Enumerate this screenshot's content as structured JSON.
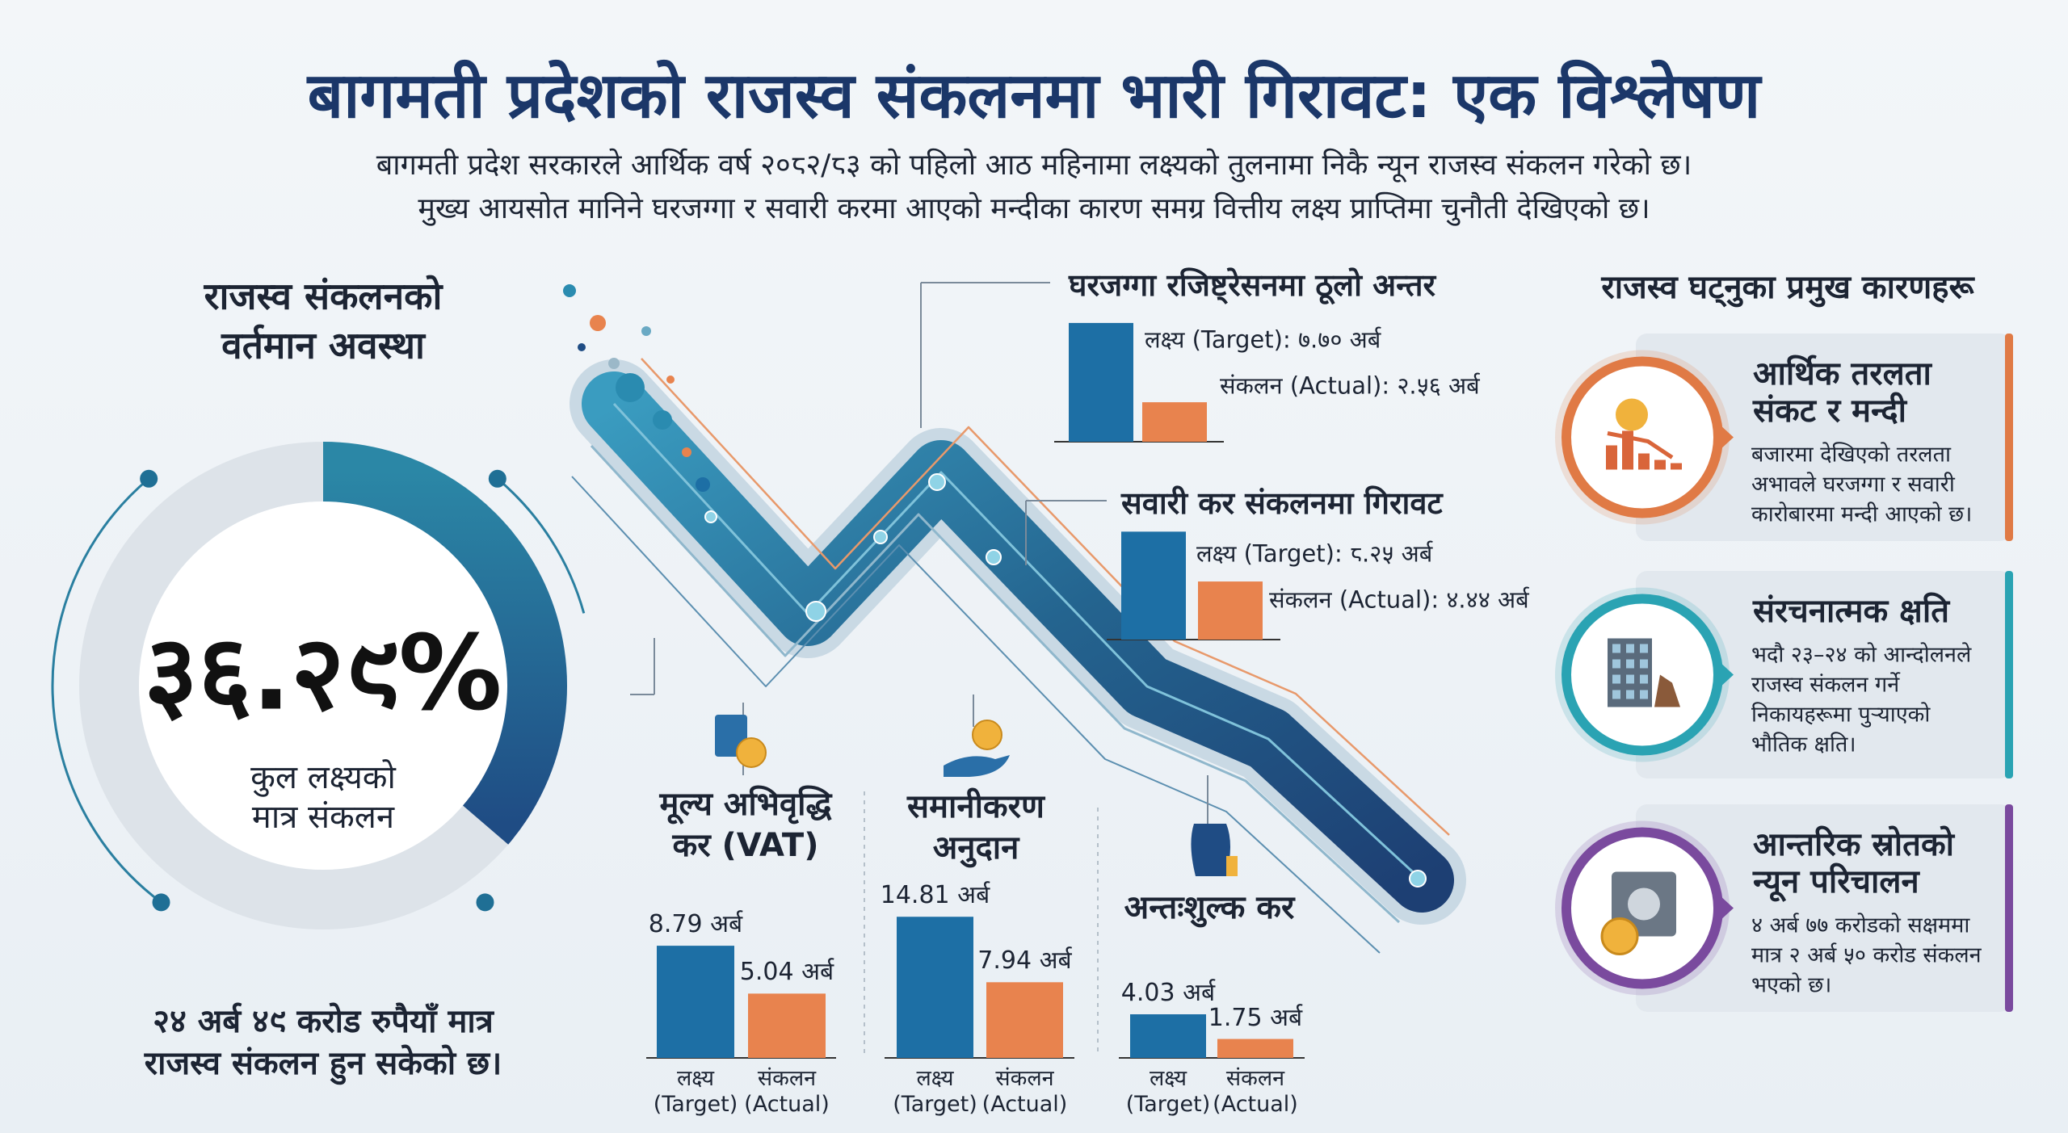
{
  "title": "बागमती प्रदेशको राजस्व संकलनमा भारी गिरावट: एक विश्लेषण",
  "subtitle": [
    "बागमती प्रदेश सरकारले आर्थिक वर्ष २०८२/८३ को पहिलो आठ महिनामा लक्ष्यको तुलनामा निकै न्यून राजस्व संकलन गरेको छ।",
    "मुख्य आयसोत मानिने घरजग्गा र सवारी करमा आएको मन्दीका कारण समग्र वित्तीय लक्ष्य प्राप्तिमा चुनौती देखिएको छ।"
  ],
  "status": {
    "heading": [
      "राजस्व संकलनको",
      "वर्तमान अवस्था"
    ],
    "note": [
      "२४ अर्ब ४९ करोड रुपैयाँ मात्र",
      "राजस्व संकलन हुन सकेको छ।"
    ]
  },
  "chart_data": [
    {
      "type": "donut",
      "values": [
        36.29
      ],
      "value_labels": [
        "३६.२९%"
      ],
      "caption": [
        "कुल लक्ष्यको",
        "मात्र संकलन"
      ],
      "color": "#1f4c84"
    },
    {
      "type": "bar",
      "title": [
        "घरजग्गा रजिष्ट्रेसनमा ठूलो अन्तर"
      ],
      "values": [
        7.7,
        2.56
      ],
      "value_labels": [
        "लक्ष्य (Target): ७.७० अर्ब",
        "संकलन (Actual): २.५६ अर्ब"
      ],
      "colors": [
        "#1d6fa5",
        "#e8834e"
      ]
    },
    {
      "type": "bar",
      "title": [
        "सवारी कर संकलनमा गिरावट"
      ],
      "values": [
        8.25,
        4.44
      ],
      "value_labels": [
        "लक्ष्य (Target): ८.२५ अर्ब",
        "संकलन (Actual): ४.४४ अर्ब"
      ],
      "colors": [
        "#1d6fa5",
        "#e8834e"
      ]
    },
    {
      "type": "bar",
      "title": [
        "मूल्य अभिवृद्धि",
        "कर (VAT)"
      ],
      "categories": [
        "लक्ष्य (Target)",
        "संकलन (Actual)"
      ],
      "values": [
        8.79,
        5.04
      ],
      "value_labels": [
        "8.79 अर्ब",
        "5.04 अर्ब"
      ],
      "colors": [
        "#1d6fa5",
        "#e8834e"
      ]
    },
    {
      "type": "bar",
      "title": [
        "समानीकरण",
        "अनुदान"
      ],
      "categories": [
        "लक्ष्य (Target)",
        "संकलन (Actual)"
      ],
      "values": [
        14.81,
        7.94
      ],
      "value_labels": [
        "14.81 अर्ब",
        "7.94 अर्ब"
      ],
      "colors": [
        "#1d6fa5",
        "#e8834e"
      ]
    },
    {
      "type": "bar",
      "title": [
        "अन्तःशुल्क कर"
      ],
      "categories": [
        "लक्ष्य (Target)",
        "संकलन (Actual)"
      ],
      "values": [
        4.03,
        1.75
      ],
      "value_labels": [
        "4.03 अर्ब",
        "1.75 अर्ब"
      ],
      "colors": [
        "#1d6fa5",
        "#e8834e"
      ]
    }
  ],
  "reasons": {
    "heading": "राजस्व घट्नुका प्रमुख कारणहरू",
    "items": [
      {
        "title": [
          "आर्थिक तरलता",
          "संकट र मन्दी"
        ],
        "text": [
          "बजारमा देखिएको तरलता",
          "अभावले घरजग्गा र सवारी",
          "कारोबारमा मन्दी आएको छ।"
        ],
        "color": "#e07a45"
      },
      {
        "title": [
          "संरचनात्मक क्षति"
        ],
        "text": [
          "भदौ २३–२४ को आन्दोलनले",
          "राजस्व संकलन गर्ने",
          "निकायहरूमा पुर्‍याएको",
          "भौतिक क्षति।"
        ],
        "color": "#2aa3b3"
      },
      {
        "title": [
          "आन्तरिक स्रोतको",
          "न्यून परिचालन"
        ],
        "text": [
          "४ अर्ब ७७ करोडको सक्षममा",
          "मात्र २ अर्ब ५० करोड संकलन",
          "भएको छ।"
        ],
        "color": "#7a4a9e"
      }
    ]
  }
}
